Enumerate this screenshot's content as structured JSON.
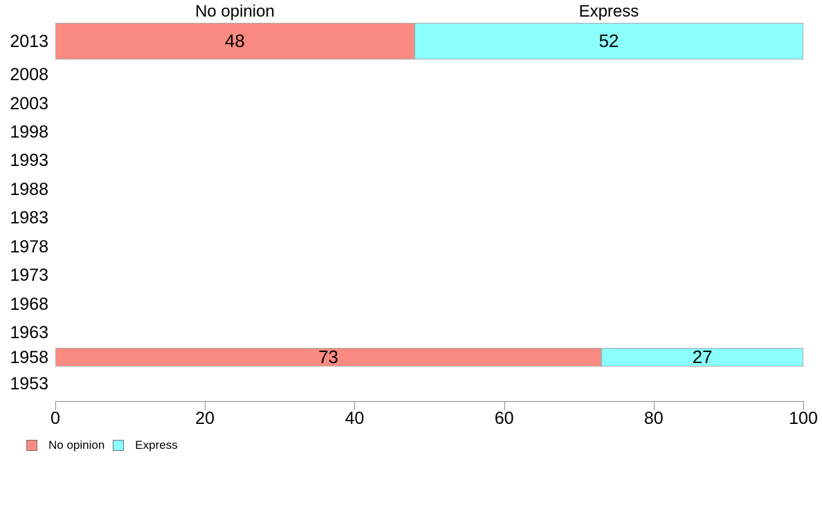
{
  "chart_data": {
    "type": "bar",
    "orientation": "horizontal",
    "stacked": true,
    "title": "",
    "categories": [
      "2013",
      "2008",
      "2003",
      "1998",
      "1993",
      "1988",
      "1983",
      "1978",
      "1973",
      "1968",
      "1963",
      "1958",
      "1953"
    ],
    "series": [
      {
        "name": "No opinion",
        "color": "#FB8B82",
        "values": [
          48,
          null,
          null,
          null,
          null,
          null,
          null,
          null,
          null,
          null,
          null,
          73,
          null
        ]
      },
      {
        "name": "Express",
        "color": "#8AFFFB",
        "values": [
          52,
          null,
          null,
          null,
          null,
          null,
          null,
          null,
          null,
          null,
          null,
          27,
          null
        ]
      }
    ],
    "column_headers": [
      "No opinion",
      "Express"
    ],
    "x_ticks": [
      "0",
      "20",
      "40",
      "60",
      "80",
      "100"
    ],
    "xlim": [
      0,
      100
    ],
    "grid": false,
    "legend": {
      "position": "bottom-left",
      "entries": [
        {
          "label": "No opinion",
          "color": "#FB8B82"
        },
        {
          "label": "Express",
          "color": "#8AFFFB"
        }
      ]
    }
  },
  "colors": {
    "bar_border": "#ABABAB",
    "axis": "#8D8D8D",
    "text": "#000000",
    "background": "#FFFFFF"
  }
}
